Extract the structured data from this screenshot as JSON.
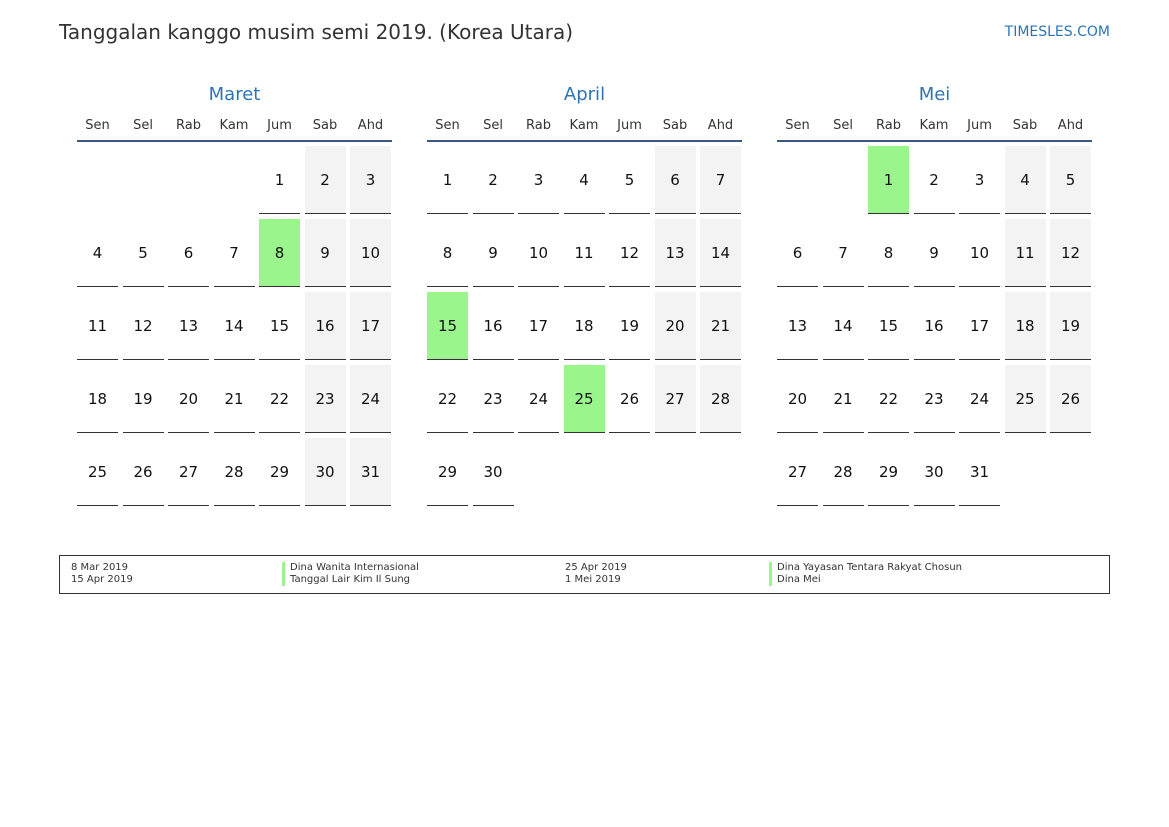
{
  "title": "Tanggalan kanggo musim semi 2019. (Korea Utara)",
  "site": "TIMESLES.COM",
  "weekdays": [
    "Sen",
    "Sel",
    "Rab",
    "Kam",
    "Jum",
    "Sab",
    "Ahd"
  ],
  "months": [
    {
      "name": "Maret",
      "offset": 4,
      "days": 31,
      "holidays": [
        8
      ]
    },
    {
      "name": "April",
      "offset": 0,
      "days": 30,
      "holidays": [
        15,
        25
      ]
    },
    {
      "name": "Mei",
      "offset": 2,
      "days": 31,
      "holidays": [
        1
      ]
    }
  ],
  "legend": [
    {
      "date": "8 Mar 2019",
      "name": "Dina Wanita Internasional"
    },
    {
      "date": "15 Apr 2019",
      "name": "Tanggal Lair Kim Il Sung"
    },
    {
      "date": "25 Apr 2019",
      "name": "Dina Yayasan Tentara Rakyat Chosun"
    },
    {
      "date": "1 Mei 2019",
      "name": "Dina Mei"
    }
  ],
  "colors": {
    "holiday": "#99f58c",
    "weekend": "#f3f3f3",
    "month_name": "#2e74b5"
  }
}
